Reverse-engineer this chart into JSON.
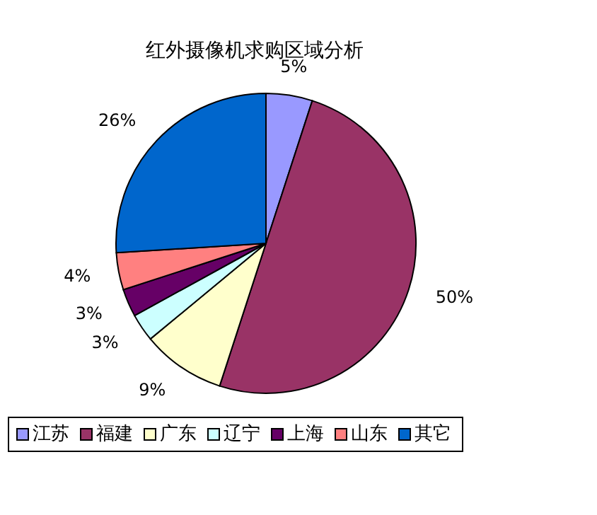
{
  "chart_data": {
    "type": "pie",
    "title": "红外摄像机求购区域分析",
    "categories": [
      "江苏",
      "福建",
      "广东",
      "辽宁",
      "上海",
      "山东",
      "其它"
    ],
    "values": [
      5,
      50,
      9,
      3,
      3,
      4,
      26
    ],
    "colors": [
      "#9999ff",
      "#993366",
      "#ffffcc",
      "#ccffff",
      "#660066",
      "#ff8080",
      "#0066cc"
    ],
    "value_labels": [
      "5%",
      "50%",
      "9%",
      "3%",
      "3%",
      "4%",
      "26%"
    ],
    "legend": "bottom"
  }
}
